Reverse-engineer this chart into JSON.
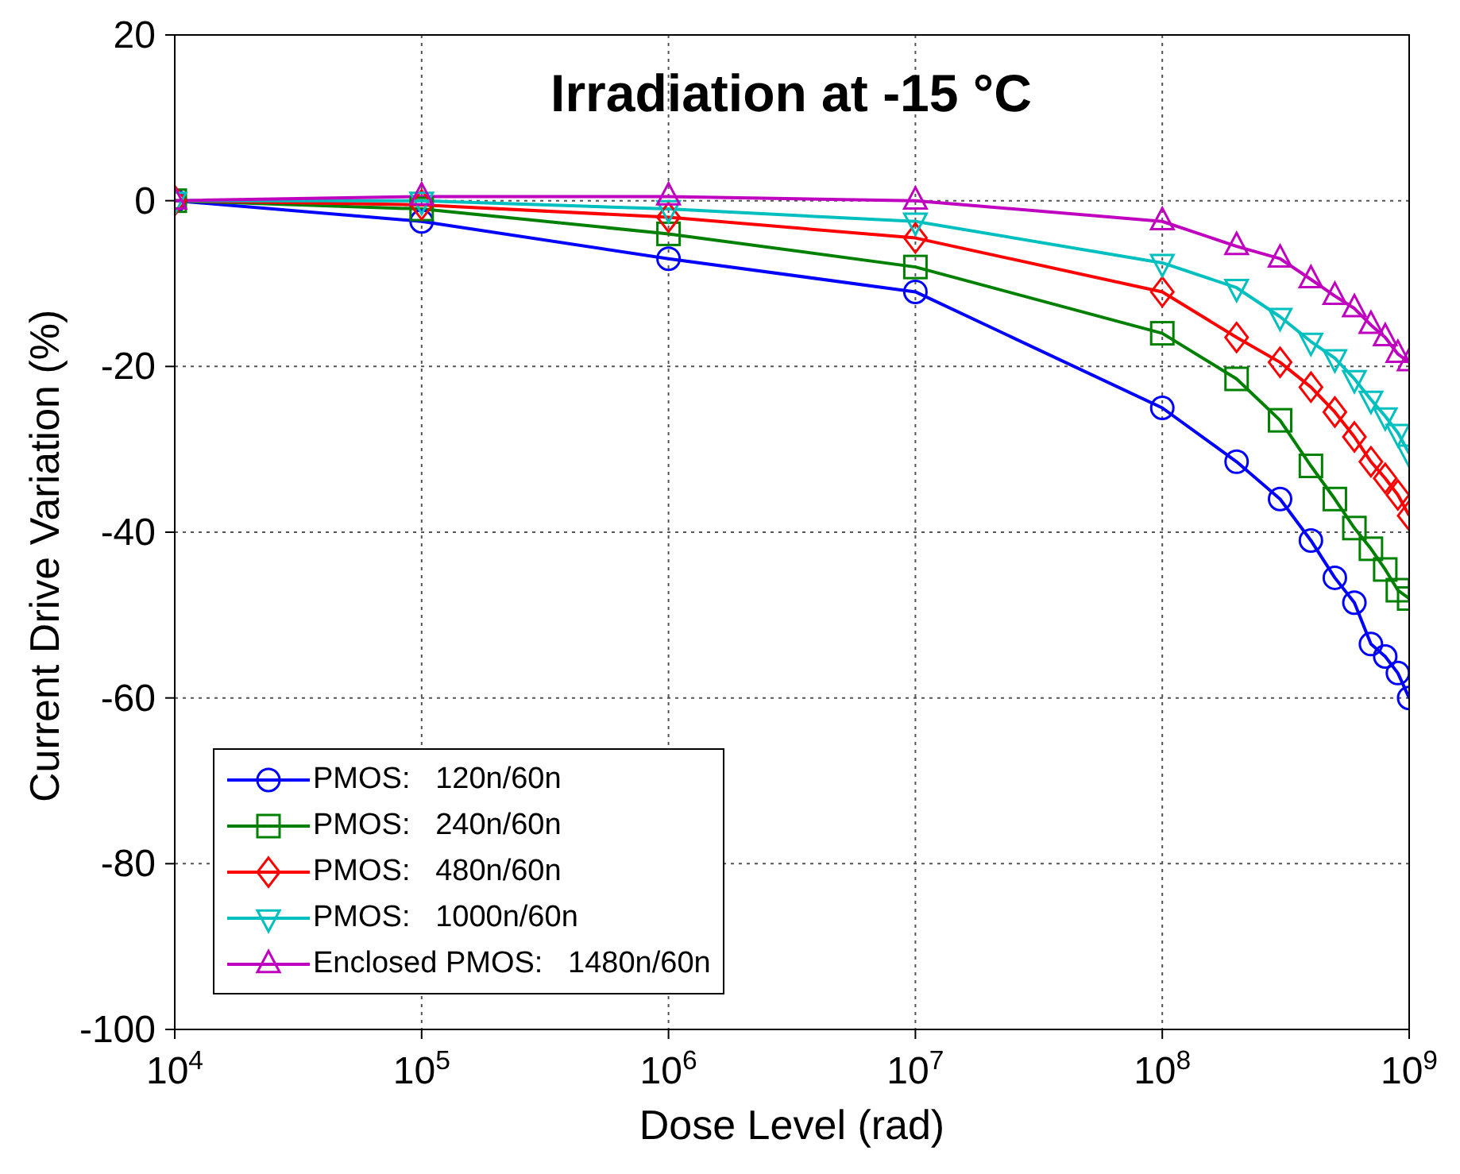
{
  "chart_data": {
    "type": "line",
    "title": "Irradiation at -15 °C",
    "xlabel": "Dose Level (rad)",
    "ylabel": "Current Drive Variation  (%)",
    "x": [
      10000,
      100000,
      1000000,
      10000000,
      100000000,
      200000000,
      300000000,
      400000000,
      500000000,
      600000000,
      700000000,
      800000000,
      900000000,
      1000000000
    ],
    "series": [
      {
        "name": "PMOS:   120n/60n",
        "color": "#0000ff",
        "marker": "circle",
        "values": [
          0,
          -2.5,
          -7,
          -11,
          -25,
          -31.5,
          -36,
          -41,
          -45.5,
          -48.5,
          -53.5,
          -55,
          -57,
          -60
        ]
      },
      {
        "name": "PMOS:   240n/60n",
        "color": "#008000",
        "marker": "square",
        "values": [
          0,
          -1,
          -4,
          -8,
          -16,
          -21.5,
          -26.5,
          -32,
          -36,
          -39.5,
          -42,
          -44.5,
          -47,
          -48
        ]
      },
      {
        "name": "PMOS:   480n/60n",
        "color": "#ff0000",
        "marker": "diamond",
        "values": [
          0,
          -0.5,
          -2,
          -4.5,
          -11,
          -16.5,
          -19.5,
          -22.5,
          -25.5,
          -28.5,
          -31.5,
          -33.5,
          -35.5,
          -38
        ]
      },
      {
        "name": "PMOS:   1000n/60n",
        "color": "#00bfbf",
        "marker": "triangle-down",
        "values": [
          0,
          0,
          -1,
          -2.5,
          -7.5,
          -10.5,
          -14,
          -17,
          -19,
          -21.5,
          -24,
          -26,
          -28,
          -30.5
        ]
      },
      {
        "name": "Enclosed PMOS:   1480n/60n",
        "color": "#bf00bf",
        "marker": "triangle",
        "values": [
          0,
          0.5,
          0.5,
          0,
          -2.5,
          -5.5,
          -7,
          -9.5,
          -11.5,
          -13,
          -15,
          -16.5,
          -18.5,
          -19.5
        ]
      }
    ],
    "log": "x",
    "xlim": [
      10000,
      1000000000
    ],
    "xticks": [
      {
        "value": 10000,
        "label": "10$^{4}$"
      },
      {
        "value": 100000,
        "label": "10$^{5}$"
      },
      {
        "value": 1000000,
        "label": "10$^{6}$"
      },
      {
        "value": 10000000,
        "label": "10$^{7}$"
      },
      {
        "value": 100000000,
        "label": "10$^{8}$"
      },
      {
        "value": 1000000000,
        "label": "10$^{9}$"
      }
    ],
    "ylim": [
      -100,
      20
    ],
    "yticks": [
      -100,
      -80,
      -60,
      -40,
      -20,
      0,
      20
    ],
    "grid": true,
    "legend": "bottom left",
    "line_style": "solid"
  }
}
